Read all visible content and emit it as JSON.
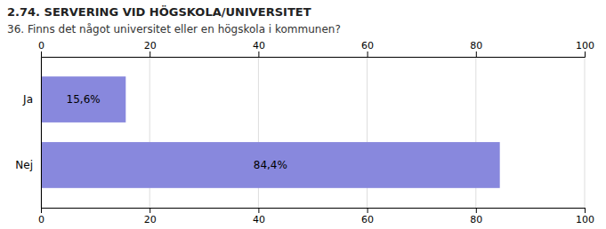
{
  "chart_data": {
    "type": "bar",
    "orientation": "horizontal",
    "title": "2.74. SERVERING VID HÖGSKOLA/UNIVERSITET",
    "subtitle": "36. Finns det något universitet eller en högskola i kommunen?",
    "categories": [
      "Nej",
      "Ja"
    ],
    "values": [
      84.4,
      15.6
    ],
    "value_labels": [
      "84,4%",
      "15,6%"
    ],
    "data_labels": true,
    "color": "#8888dd",
    "xlim": [
      0,
      100
    ],
    "xticks": [
      0,
      20,
      40,
      60,
      80,
      100
    ],
    "grid": true
  }
}
